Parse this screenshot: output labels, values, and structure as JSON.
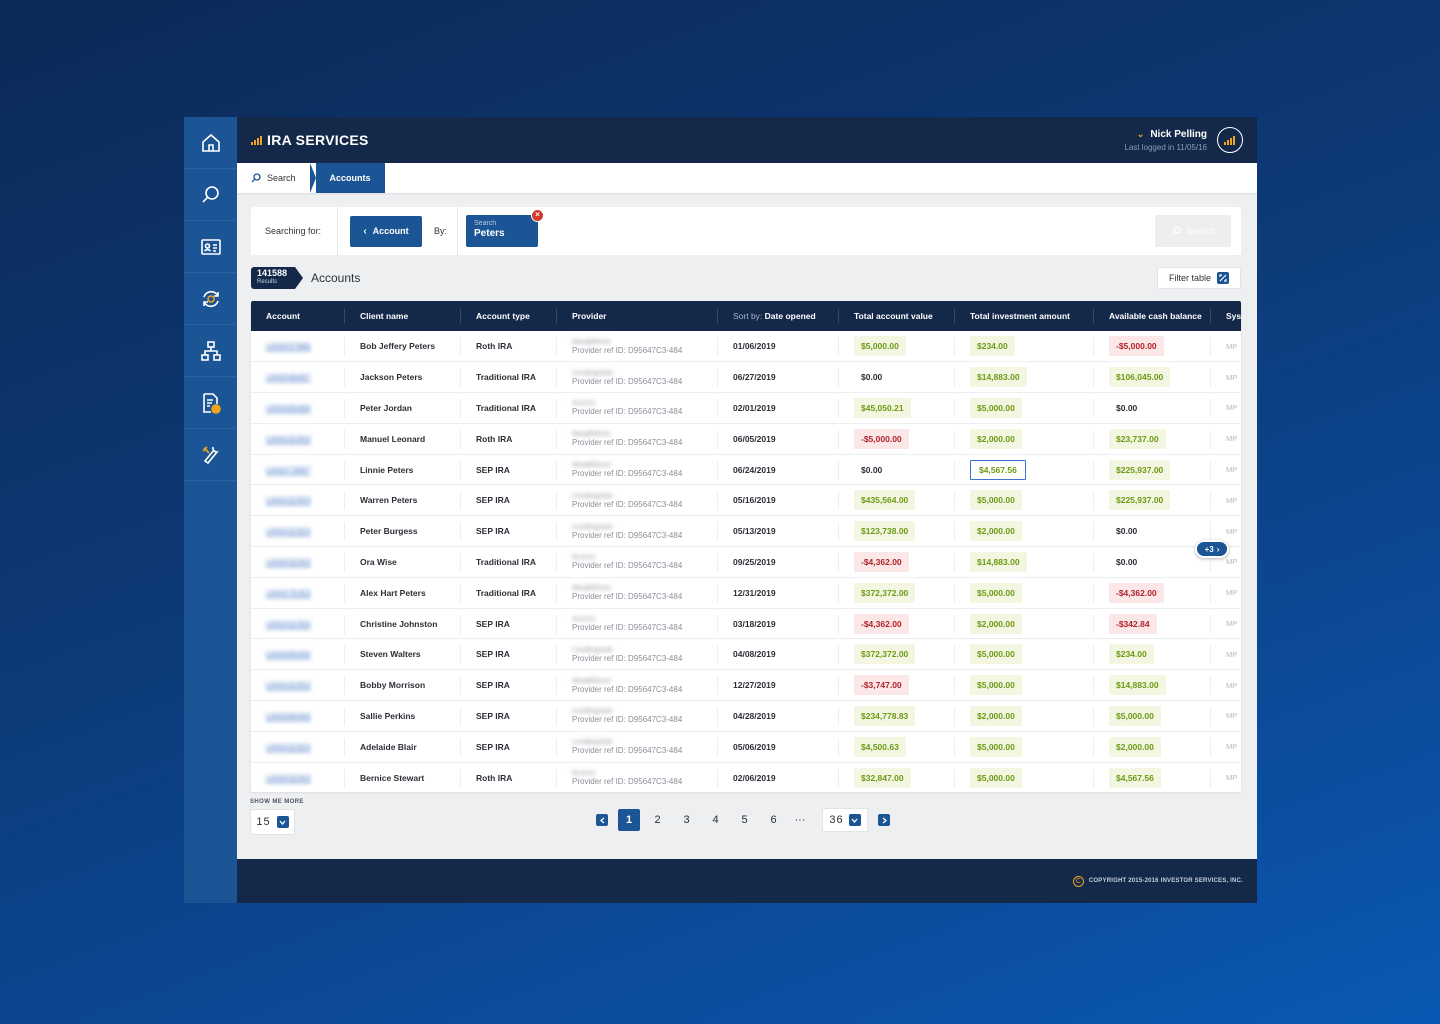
{
  "app": {
    "brand": "IRA SERVICES"
  },
  "user": {
    "name": "Nick Pelling",
    "last_login": "Last logged in 11/05/16"
  },
  "sidebar": {
    "items": [
      {
        "icon": "home-icon"
      },
      {
        "icon": "search-icon"
      },
      {
        "icon": "contact-card-icon"
      },
      {
        "icon": "refresh-money-icon"
      },
      {
        "icon": "hierarchy-icon"
      },
      {
        "icon": "document-clock-icon"
      },
      {
        "icon": "tools-icon"
      }
    ]
  },
  "breadcrumb": {
    "search": "Search",
    "accounts": "Accounts"
  },
  "search_panel": {
    "searching_for": "Searching for:",
    "account_button": "Account",
    "by": "By:",
    "chip_label": "Search",
    "chip_value": "Peters",
    "search_button": "Search"
  },
  "results": {
    "count": "141588",
    "count_label": "Results",
    "title": "Accounts",
    "filter_button": "Filter table"
  },
  "table": {
    "headers": {
      "account": "Account",
      "client_name": "Client name",
      "account_type": "Account type",
      "provider": "Provider",
      "sort_prefix": "Sort by:",
      "date_opened": "Date opened",
      "total_account_value": "Total account value",
      "total_investment_amount": "Total investment amount",
      "available_cash_balance": "Available cash balance",
      "system": "Sys"
    },
    "rows": [
      {
        "account": "UANX37966",
        "client": "Bob Jeffery Peters",
        "type": "Roth IRA",
        "provider": "Wealthfront",
        "ref": "Provider ref ID: D95647C3-484",
        "date": "01/06/2019",
        "tav": "$5,000.00",
        "tia": "$234.00",
        "acb": "-$5,000.00",
        "sys": "MP"
      },
      {
        "account": "UANX46467",
        "client": "Jackson Peters",
        "type": "Traditional IRA",
        "provider": "Lendingclub",
        "ref": "Provider ref ID: D95647C3-484",
        "date": "06/27/2019",
        "tav": "$0.00",
        "tia": "$14,883.00",
        "acb": "$106,045.00",
        "sys": "MP"
      },
      {
        "account": "UANX65464",
        "client": "Peter Jordan",
        "type": "Traditional IRA",
        "provider": "Acorns",
        "ref": "Provider ref ID: D95647C3-484",
        "date": "02/01/2019",
        "tav": "$45,050.21",
        "tia": "$5,000.00",
        "acb": "$0.00",
        "sys": "MP"
      },
      {
        "account": "UANX32353",
        "client": "Manuel Leonard",
        "type": "Roth IRA",
        "provider": "Wealthfront",
        "ref": "Provider ref ID: D95647C3-484",
        "date": "06/05/2019",
        "tav": "-$5,000.00",
        "tia": "$2,000.00",
        "acb": "$23,737.00",
        "sys": "MP"
      },
      {
        "account": "UANX73697",
        "client": "Linnie Peters",
        "type": "SEP IRA",
        "provider": "Wealthfront",
        "ref": "Provider ref ID: D95647C3-484",
        "date": "06/24/2019",
        "tav": "$0.00",
        "tia": "$4,567.56",
        "acb": "$225,937.00",
        "sys": "MP"
      },
      {
        "account": "UANX32353",
        "client": "Warren Peters",
        "type": "SEP IRA",
        "provider": "Lendingclub",
        "ref": "Provider ref ID: D95647C3-484",
        "date": "05/16/2019",
        "tav": "$435,564.00",
        "tia": "$5,000.00",
        "acb": "$225,937.00",
        "sys": "MP"
      },
      {
        "account": "UANX32353",
        "client": "Peter Burgess",
        "type": "SEP IRA",
        "provider": "Lendingclub",
        "ref": "Provider ref ID: D95647C3-484",
        "date": "05/13/2019",
        "tav": "$123,738.00",
        "tia": "$2,000.00",
        "acb": "$0.00",
        "sys": "MP"
      },
      {
        "account": "UANX32353",
        "client": "Ora Wise",
        "type": "Traditional IRA",
        "provider": "Acorns",
        "ref": "Provider ref ID: D95647C3-484",
        "date": "09/25/2019",
        "tav": "-$4,362.00",
        "tia": "$14,883.00",
        "acb": "$0.00",
        "sys": "MP"
      },
      {
        "account": "UANX75353",
        "client": "Alex Hart Peters",
        "type": "Traditional IRA",
        "provider": "Wealthfront",
        "ref": "Provider ref ID: D95647C3-484",
        "date": "12/31/2019",
        "tav": "$372,372.00",
        "tia": "$5,000.00",
        "acb": "-$4,362.00",
        "sys": "MP"
      },
      {
        "account": "UANX32353",
        "client": "Christine Johnston",
        "type": "SEP IRA",
        "provider": "Acorns",
        "ref": "Provider ref ID: D95647C3-484",
        "date": "03/18/2019",
        "tav": "-$4,362.00",
        "tia": "$2,000.00",
        "acb": "-$342.84",
        "sys": "MP"
      },
      {
        "account": "UANX65464",
        "client": "Steven Walters",
        "type": "SEP IRA",
        "provider": "Lendingclub",
        "ref": "Provider ref ID: D95647C3-484",
        "date": "04/08/2019",
        "tav": "$372,372.00",
        "tia": "$5,000.00",
        "acb": "$234.00",
        "sys": "MP"
      },
      {
        "account": "UANX32353",
        "client": "Bobby Morrison",
        "type": "SEP IRA",
        "provider": "Wealthfront",
        "ref": "Provider ref ID: D95647C3-484",
        "date": "12/27/2019",
        "tav": "-$3,747.00",
        "tia": "$5,000.00",
        "acb": "$14,883.00",
        "sys": "MP"
      },
      {
        "account": "UANX65464",
        "client": "Sallie Perkins",
        "type": "SEP IRA",
        "provider": "Lendingclub",
        "ref": "Provider ref ID: D95647C3-484",
        "date": "04/28/2019",
        "tav": "$234,778.83",
        "tia": "$2,000.00",
        "acb": "$5,000.00",
        "sys": "MP"
      },
      {
        "account": "UANX32353",
        "client": "Adelaide Blair",
        "type": "SEP IRA",
        "provider": "Lendingclub",
        "ref": "Provider ref ID: D95647C3-484",
        "date": "05/06/2019",
        "tav": "$4,500.63",
        "tia": "$5,000.00",
        "acb": "$2,000.00",
        "sys": "MP"
      },
      {
        "account": "UANX32353",
        "client": "Bernice Stewart",
        "type": "Roth IRA",
        "provider": "Acorns",
        "ref": "Provider ref ID: D95647C3-484",
        "date": "02/06/2019",
        "tav": "$32,847.00",
        "tia": "$5,000.00",
        "acb": "$4,567.56",
        "sys": "MP"
      }
    ],
    "more_columns": "+3"
  },
  "show_more": {
    "label": "SHOW ME MORE",
    "value": "15"
  },
  "pagination": {
    "pages": [
      "1",
      "2",
      "3",
      "4",
      "5",
      "6"
    ],
    "current": "1",
    "dots": "···",
    "last": "36"
  },
  "footer": {
    "copyright_symbol": "C",
    "copyright": "COPYRIGHT 2015-2016 INVESTOR SERVICES, INC."
  },
  "colors": {
    "brand_dark": "#14294a",
    "brand_blue": "#1b5596",
    "accent": "#f0a31c",
    "positive": "#6c9a13",
    "negative": "#b0232a"
  }
}
